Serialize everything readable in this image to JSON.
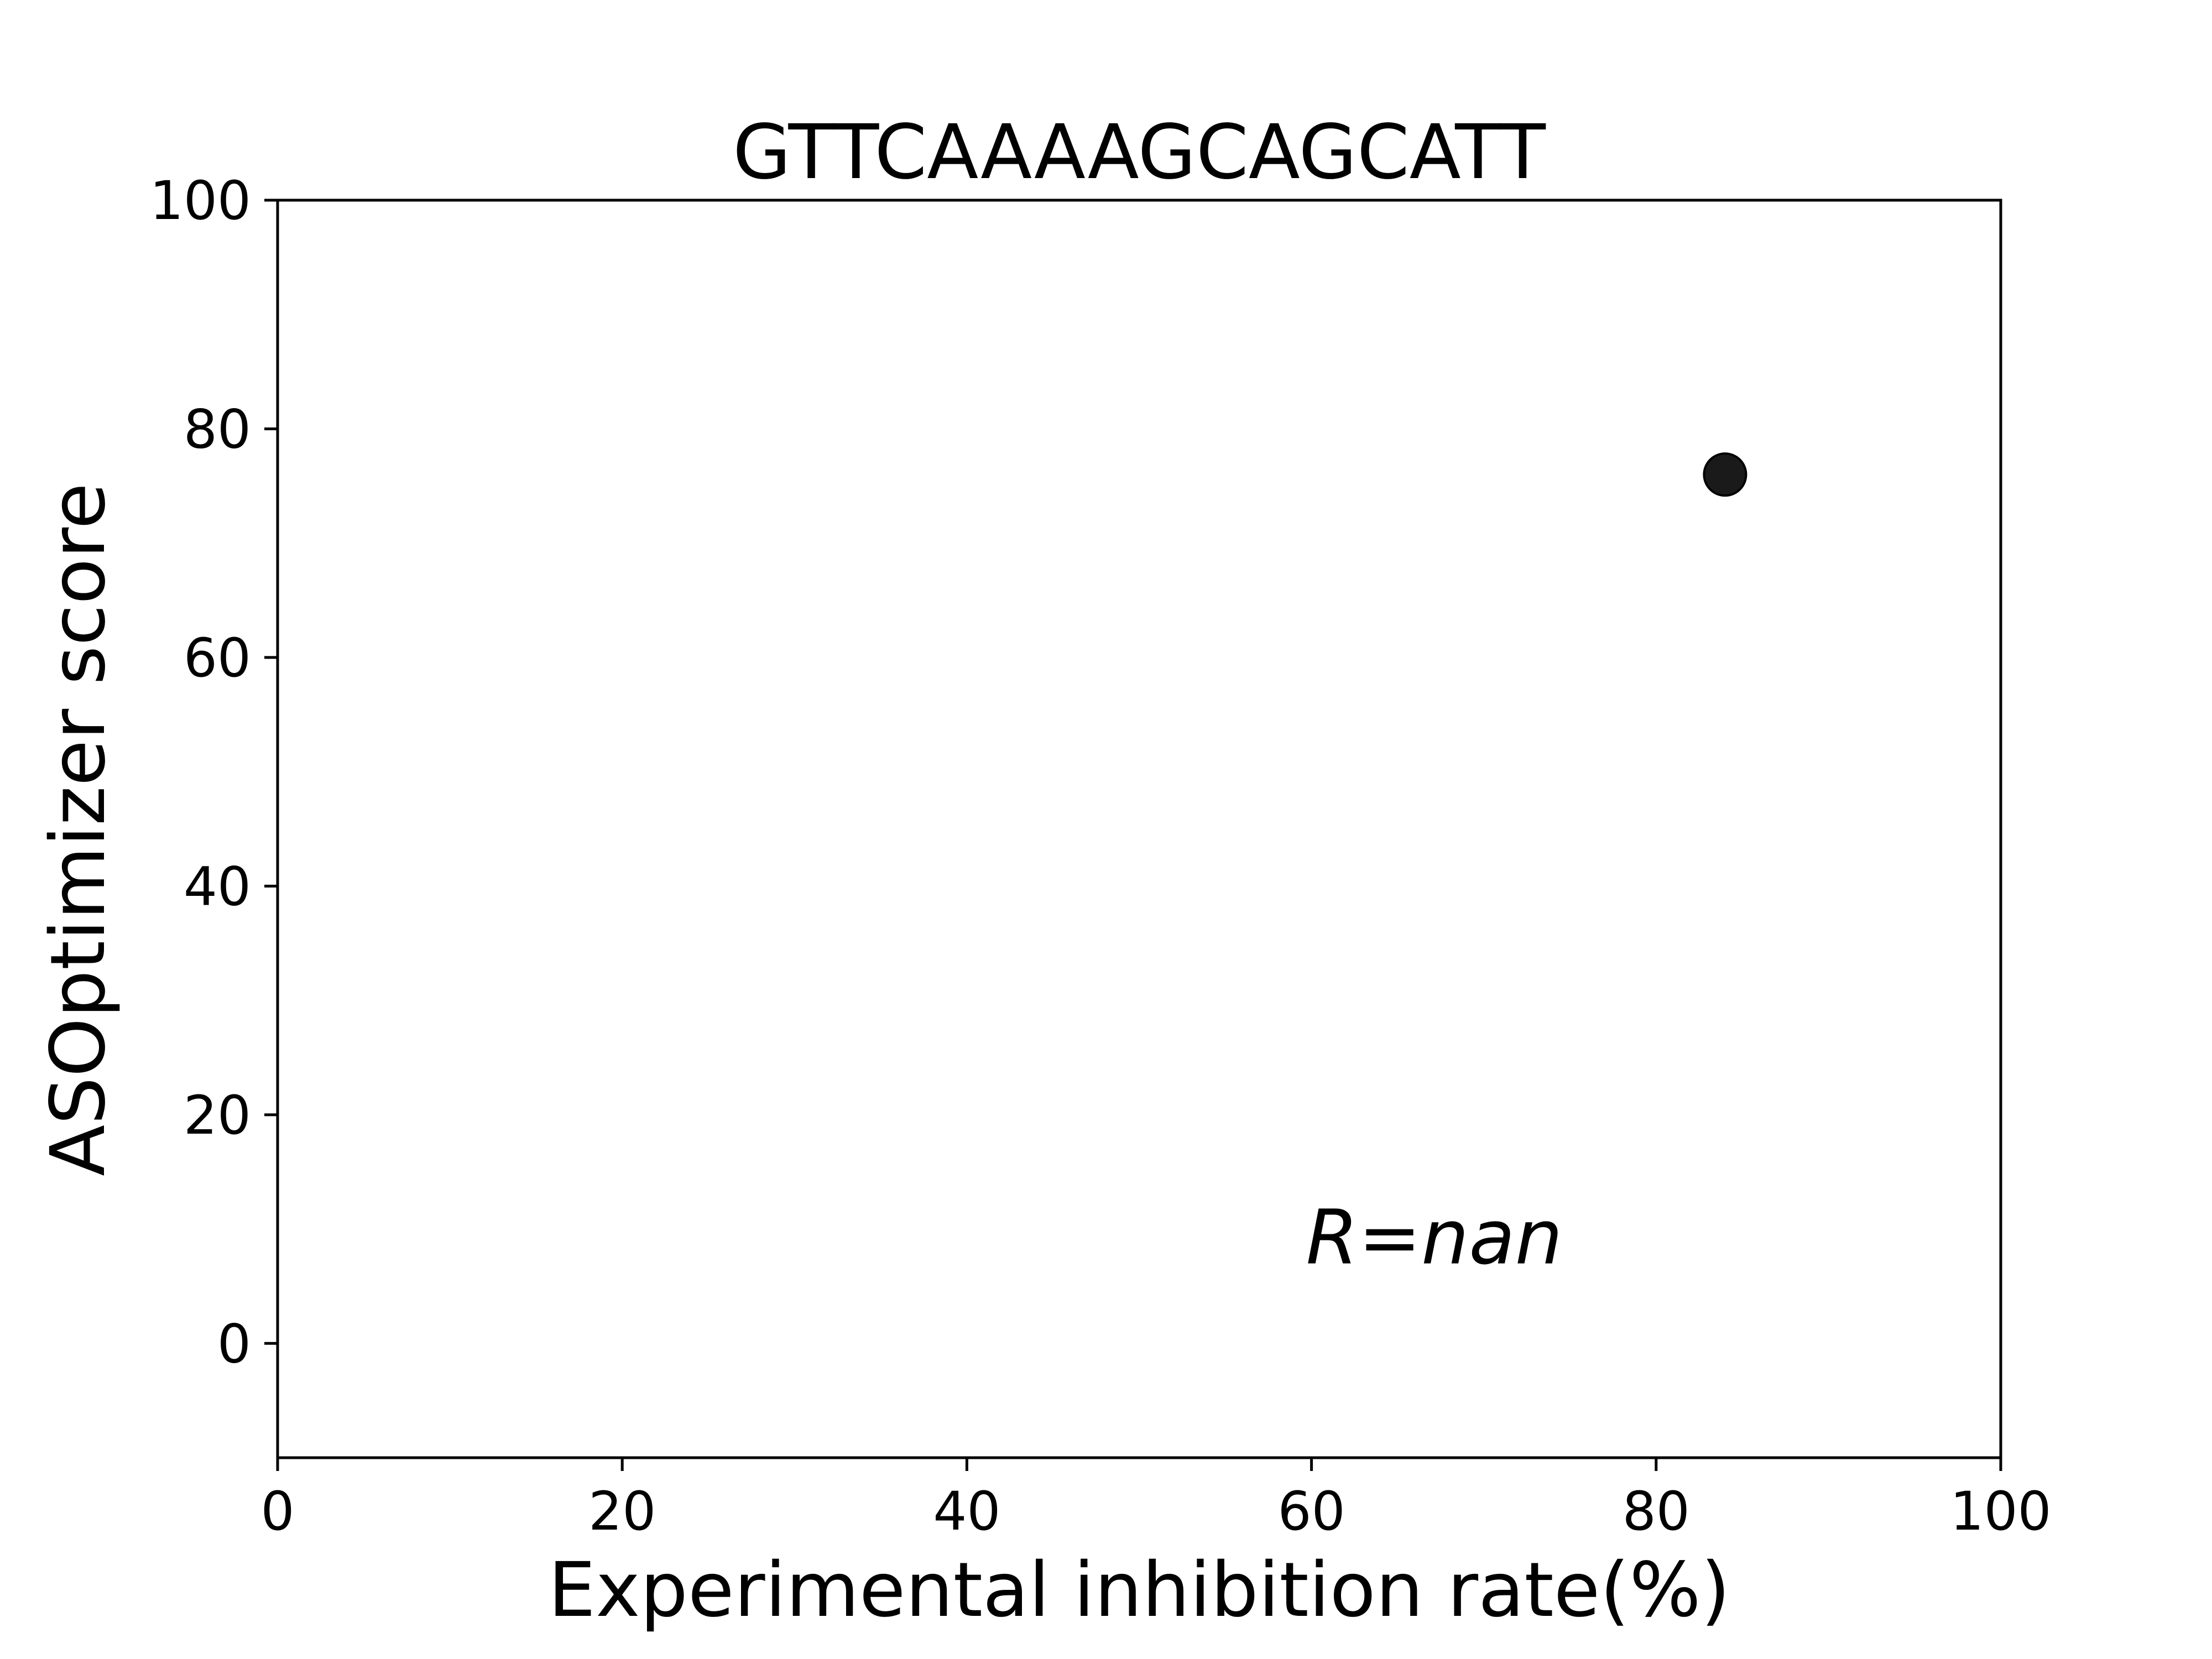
{
  "chart_data": {
    "type": "scatter",
    "title": "GTTCAAAAGCAGCATT",
    "xlabel": "Experimental inhibition rate(%)",
    "ylabel": "ASOptimizer score",
    "xlim": [
      0,
      100
    ],
    "ylim": [
      -10,
      100
    ],
    "xticks": [
      0,
      20,
      40,
      60,
      80,
      100
    ],
    "yticks": [
      0,
      20,
      40,
      60,
      80,
      100
    ],
    "grid": false,
    "series": [
      {
        "points": [
          {
            "x": 84,
            "y": 76
          }
        ],
        "color": "#1a1a1a"
      }
    ],
    "annotation": {
      "text": "R=nan",
      "x": 60,
      "y": 7
    }
  }
}
